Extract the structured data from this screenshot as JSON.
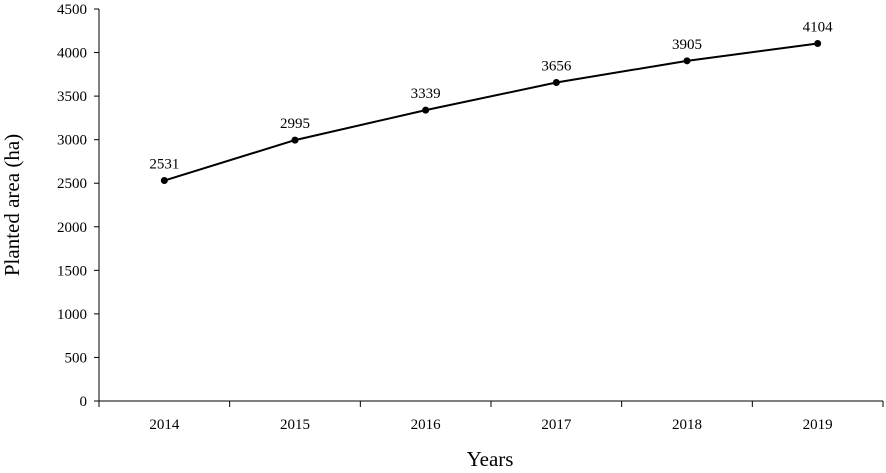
{
  "chart_data": {
    "type": "line",
    "title": "",
    "xlabel": "Years",
    "ylabel": "Planted area (ha)",
    "categories": [
      "2014",
      "2015",
      "2016",
      "2017",
      "2018",
      "2019"
    ],
    "series": [
      {
        "values": [
          2531,
          2995,
          3339,
          3656,
          3905,
          4104
        ],
        "color": "#000000",
        "markers": true,
        "data_labels": true
      }
    ],
    "ylim": [
      0,
      4500
    ],
    "yticks": [
      0,
      500,
      1000,
      1500,
      2000,
      2500,
      3000,
      3500,
      4000,
      4500
    ],
    "grid": false,
    "legend": "none"
  }
}
